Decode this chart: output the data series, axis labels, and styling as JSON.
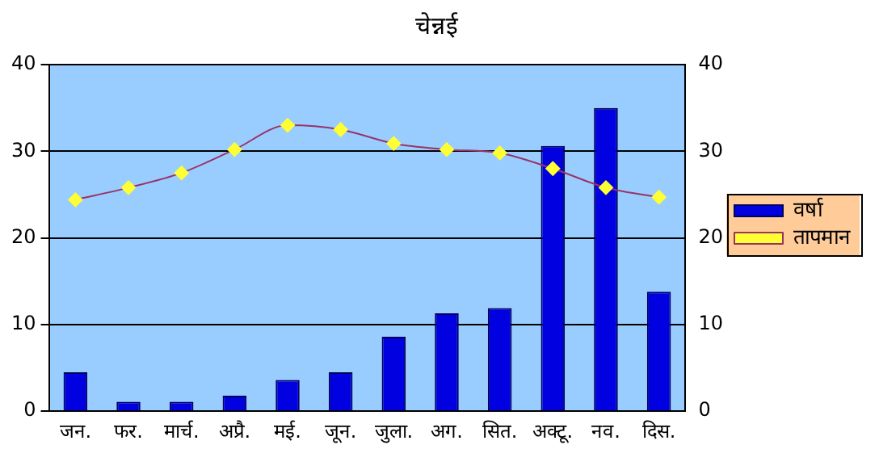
{
  "chart_data": {
    "type": "bar",
    "title": "चेन्नई",
    "categories": [
      "जन.",
      "फर.",
      "मार्च.",
      "अप्रै.",
      "मई.",
      "जून.",
      "जुला.",
      "अग.",
      "सित.",
      "अक्टू.",
      "नव.",
      "दिस."
    ],
    "series": [
      {
        "name": "वर्षा",
        "color": "#0000e0",
        "values": [
          4.5,
          1.1,
          1.1,
          1.8,
          3.6,
          4.5,
          8.6,
          11.3,
          11.9,
          30.6,
          35,
          13.8
        ]
      },
      {
        "name": "तापमान",
        "type": "line",
        "color": "#993366",
        "values": [
          24.4,
          25.8,
          27.5,
          30.2,
          33,
          32.5,
          30.9,
          30.2,
          29.8,
          28,
          25.8,
          24.7
        ]
      }
    ],
    "ylim": [
      0,
      40
    ],
    "yticks": [
      0,
      10,
      20,
      30,
      40
    ],
    "y2lim": [
      0,
      40
    ],
    "y2ticks": [
      0,
      10,
      20,
      30,
      40
    ],
    "grid": "y",
    "legend": "right",
    "marker": "diamond"
  }
}
